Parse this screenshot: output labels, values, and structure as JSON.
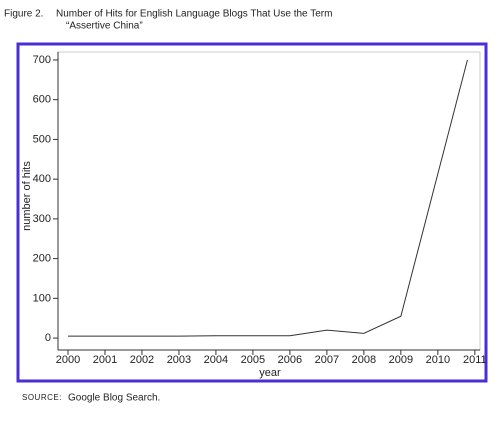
{
  "figure_label": "Figure 2.",
  "chart_data": {
    "type": "line",
    "title": "Number of Hits for English Language Blogs That Use the Term",
    "subtitle": "“Assertive China”",
    "x_label": "year",
    "y_label": "number of hits",
    "x": [
      2000,
      2001,
      2002,
      2003,
      2004,
      2005,
      2006,
      2007,
      2008,
      2009,
      2010.8
    ],
    "series": [
      {
        "name": "hits",
        "color": "#333333",
        "values": [
          5,
          5,
          5,
          5,
          6,
          6,
          6,
          20,
          12,
          55,
          700
        ]
      }
    ],
    "xlim": [
      1999.73,
      2011.14
    ],
    "ylim": [
      -30,
      720
    ],
    "xticks": [
      2000,
      2001,
      2002,
      2003,
      2004,
      2005,
      2006,
      2007,
      2008,
      2009,
      2010,
      2011
    ],
    "yticks": [
      0,
      100,
      200,
      300,
      400,
      500,
      600,
      700
    ],
    "grid": false
  },
  "source": {
    "label": "SOURCE:",
    "text": "Google Blog Search."
  }
}
